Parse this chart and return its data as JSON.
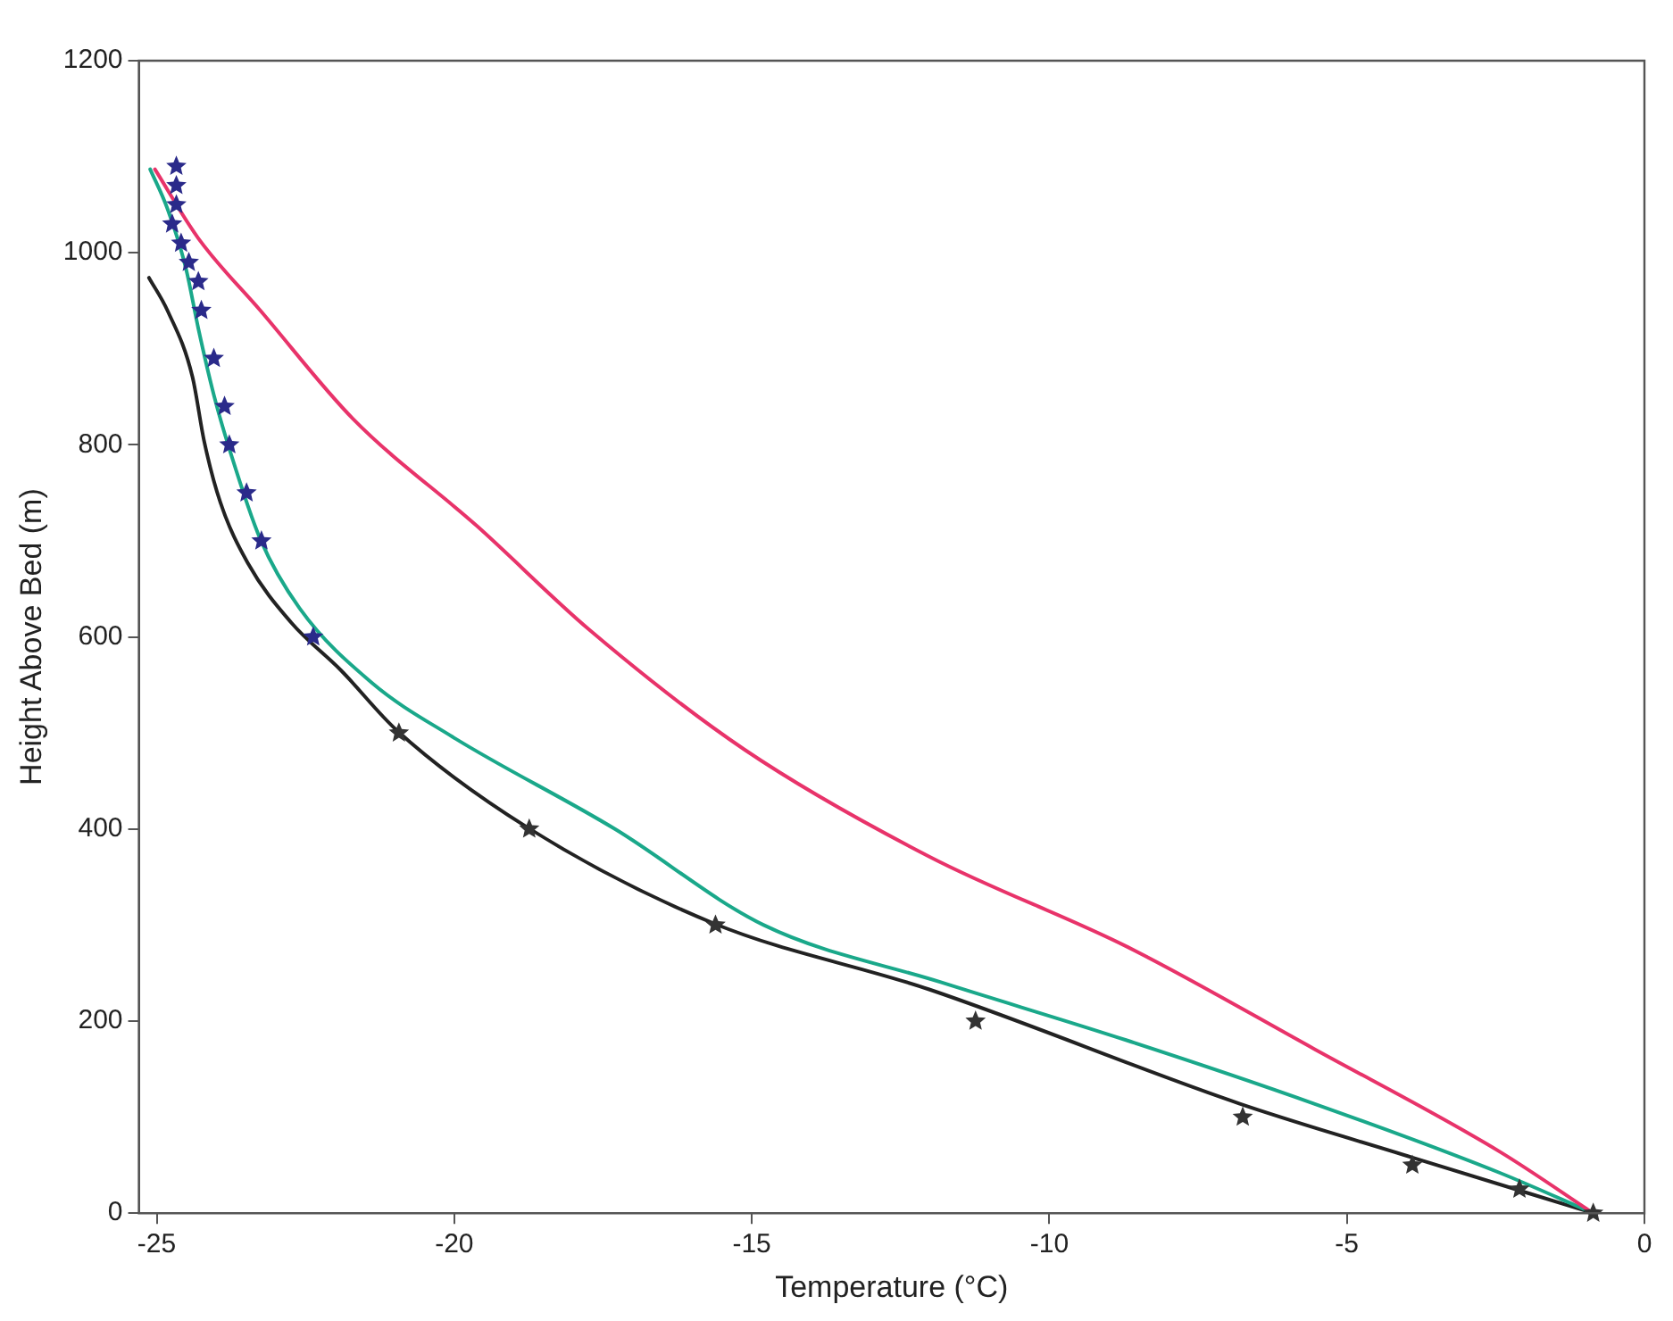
{
  "chart_data": {
    "type": "line",
    "xlabel": "Temperature (°C)",
    "ylabel": "Height Above Bed (m)",
    "xlim": [
      -25.3,
      0
    ],
    "xticks": [
      -25,
      -20,
      -15,
      -10,
      -5,
      0
    ],
    "ylim": [
      0,
      1200
    ],
    "yticks": [
      0,
      200,
      400,
      600,
      800,
      1000,
      1200
    ],
    "grid": false,
    "legend": false,
    "line_style": "solid",
    "series": [
      {
        "type": "line",
        "marker": "none",
        "color": "#e8336a",
        "x": [
          -25.03,
          -24.3,
          -23.26,
          -21.7,
          -19.61,
          -17.74,
          -15.13,
          -12.01,
          -8.68,
          -5.55,
          -2.43,
          -0.86
        ],
        "values": [
          1087,
          1015,
          940,
          827,
          715,
          608,
          483,
          371,
          277,
          171,
          64,
          0
        ]
      },
      {
        "type": "line",
        "marker": "none",
        "color": "#1aa88a",
        "x": [
          -25.11,
          -24.82,
          -24.51,
          -24.3,
          -24.04,
          -23.78,
          -23.26,
          -22.6,
          -21.38,
          -20.03,
          -17.3,
          -14.8,
          -11.8,
          -8.7,
          -5.55,
          -2.43,
          -0.86
        ],
        "values": [
          1087,
          1046,
          984,
          921,
          852,
          796,
          702,
          630,
          552,
          496,
          400,
          300,
          240,
          180,
          114,
          42,
          0
        ]
      },
      {
        "type": "line",
        "marker": "none",
        "color": "#222222",
        "x": [
          -25.13,
          -24.82,
          -24.4,
          -24.2,
          -23.93,
          -23.47,
          -22.74,
          -21.9,
          -20.97,
          -18.78,
          -15.65,
          -12.02,
          -6.8,
          -3.9,
          -0.86
        ],
        "values": [
          974,
          940,
          871,
          803,
          740,
          677,
          615,
          565,
          503,
          402,
          302,
          233,
          114,
          58,
          0
        ]
      },
      {
        "type": "scatter",
        "marker": "star",
        "color": "#2a2a8a",
        "x": [
          -24.67,
          -24.67,
          -24.67,
          -24.74,
          -24.59,
          -24.46,
          -24.3,
          -24.25,
          -24.04,
          -23.86,
          -23.78,
          -23.49,
          -23.24,
          -22.37
        ],
        "values": [
          1090,
          1070,
          1050,
          1030,
          1010,
          990,
          970,
          940,
          890,
          840,
          800,
          750,
          700,
          600
        ]
      },
      {
        "type": "scatter",
        "marker": "star",
        "color": "#333333",
        "x": [
          -20.93,
          -18.74,
          -15.61,
          -11.24,
          -6.75,
          -3.9,
          -2.1,
          -0.86
        ],
        "values": [
          500,
          400,
          300,
          200,
          100,
          50,
          25,
          0
        ]
      }
    ]
  }
}
